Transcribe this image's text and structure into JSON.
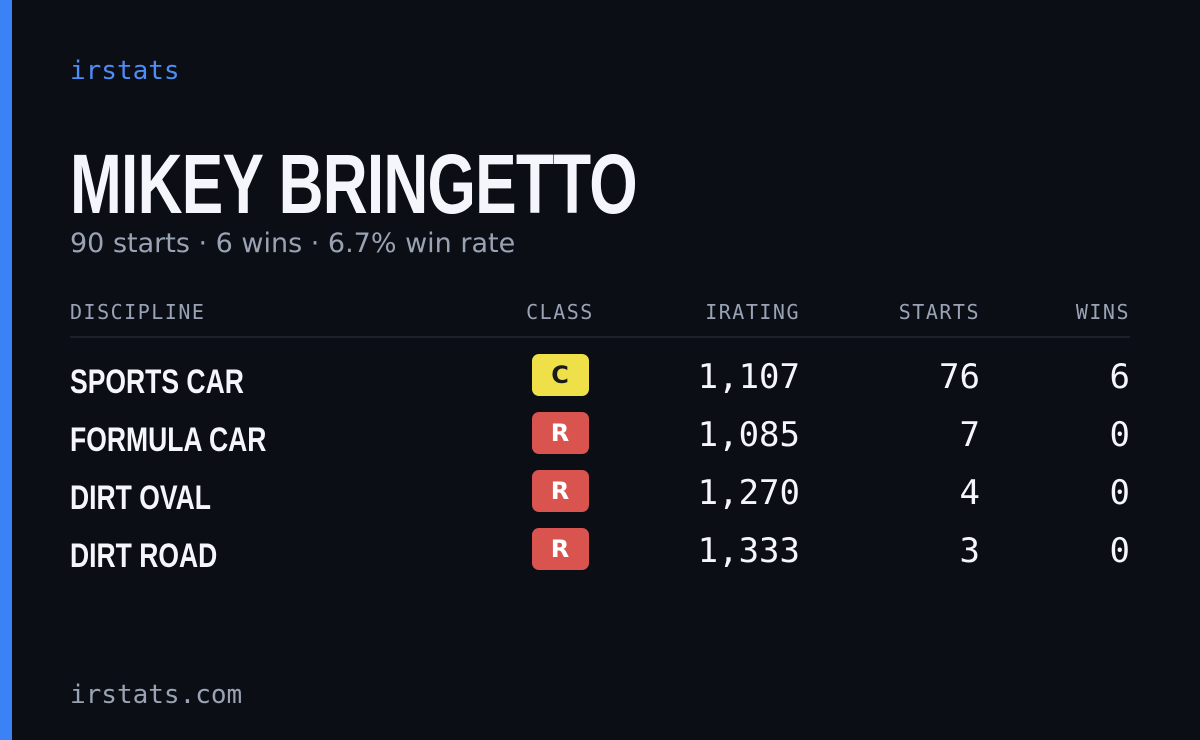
{
  "brand": "irstats",
  "profile": {
    "name": "MIKEY BRINGETTO",
    "summary": "90 starts · 6 wins · 6.7% win rate"
  },
  "table": {
    "headers": [
      "DISCIPLINE",
      "CLASS",
      "IRATING",
      "STARTS",
      "WINS"
    ],
    "rows": [
      [
        "SPORTS CAR",
        "C",
        "1,107",
        "76",
        "6"
      ],
      [
        "FORMULA CAR",
        "R",
        "1,085",
        "7",
        "0"
      ],
      [
        "DIRT OVAL",
        "R",
        "1,270",
        "4",
        "0"
      ],
      [
        "DIRT ROAD",
        "R",
        "1,333",
        "3",
        "0"
      ]
    ],
    "class_colors": [
      {
        "background": "#efe04a",
        "text": "#1a1a1a"
      },
      {
        "background": "#d9544f",
        "text": "#ffffff"
      },
      {
        "background": "#d9544f",
        "text": "#ffffff"
      },
      {
        "background": "#d9544f",
        "text": "#ffffff"
      }
    ]
  },
  "footer": "irstats.com"
}
